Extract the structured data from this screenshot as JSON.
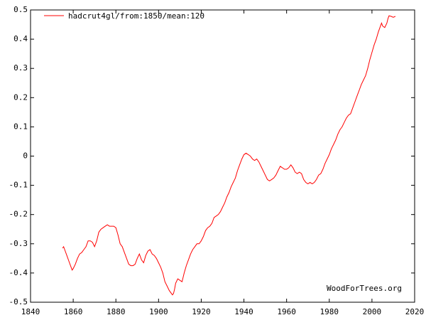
{
  "chart_data": {
    "type": "line",
    "title": "",
    "xlabel": "",
    "ylabel": "",
    "xlim": [
      1840,
      2020
    ],
    "ylim": [
      -0.5,
      0.5
    ],
    "x_ticks": [
      1840,
      1860,
      1880,
      1900,
      1920,
      1940,
      1960,
      1980,
      2000,
      2020
    ],
    "y_ticks": [
      -0.5,
      -0.4,
      -0.3,
      -0.2,
      -0.1,
      0,
      0.1,
      0.2,
      0.3,
      0.4,
      0.5
    ],
    "x_tick_labels": [
      "1840",
      "1860",
      "1880",
      "1900",
      "1920",
      "1940",
      "1960",
      "1980",
      "2000",
      "2020"
    ],
    "y_tick_labels": [
      "-0.5",
      "-0.4",
      "-0.3",
      "-0.2",
      "-0.1",
      "0",
      "0.1",
      "0.2",
      "0.3",
      "0.4",
      "0.5"
    ],
    "grid": false,
    "legend_position": "top-left",
    "series": [
      {
        "name": "hadcrut4gl/from:1850/mean:120",
        "color": "#ff0000",
        "points": [
          [
            1855.0,
            -0.315
          ],
          [
            1855.5,
            -0.31
          ],
          [
            1856.0,
            -0.32
          ],
          [
            1857.0,
            -0.34
          ],
          [
            1858.0,
            -0.36
          ],
          [
            1859.0,
            -0.38
          ],
          [
            1859.5,
            -0.39
          ],
          [
            1860.0,
            -0.385
          ],
          [
            1861.0,
            -0.37
          ],
          [
            1862.0,
            -0.35
          ],
          [
            1863.0,
            -0.335
          ],
          [
            1864.0,
            -0.33
          ],
          [
            1865.0,
            -0.32
          ],
          [
            1866.0,
            -0.31
          ],
          [
            1867.0,
            -0.29
          ],
          [
            1868.0,
            -0.29
          ],
          [
            1869.0,
            -0.295
          ],
          [
            1870.0,
            -0.31
          ],
          [
            1871.0,
            -0.29
          ],
          [
            1872.0,
            -0.26
          ],
          [
            1873.0,
            -0.25
          ],
          [
            1874.0,
            -0.245
          ],
          [
            1875.0,
            -0.24
          ],
          [
            1876.0,
            -0.235
          ],
          [
            1877.0,
            -0.24
          ],
          [
            1878.0,
            -0.24
          ],
          [
            1879.0,
            -0.24
          ],
          [
            1880.0,
            -0.245
          ],
          [
            1881.0,
            -0.27
          ],
          [
            1882.0,
            -0.3
          ],
          [
            1883.0,
            -0.31
          ],
          [
            1884.0,
            -0.33
          ],
          [
            1885.0,
            -0.35
          ],
          [
            1886.0,
            -0.37
          ],
          [
            1887.0,
            -0.375
          ],
          [
            1888.0,
            -0.375
          ],
          [
            1889.0,
            -0.37
          ],
          [
            1890.0,
            -0.35
          ],
          [
            1891.0,
            -0.335
          ],
          [
            1892.0,
            -0.355
          ],
          [
            1893.0,
            -0.365
          ],
          [
            1894.0,
            -0.34
          ],
          [
            1895.0,
            -0.325
          ],
          [
            1896.0,
            -0.32
          ],
          [
            1897.0,
            -0.335
          ],
          [
            1898.0,
            -0.34
          ],
          [
            1899.0,
            -0.35
          ],
          [
            1900.0,
            -0.365
          ],
          [
            1901.0,
            -0.38
          ],
          [
            1902.0,
            -0.4
          ],
          [
            1903.0,
            -0.43
          ],
          [
            1904.0,
            -0.445
          ],
          [
            1905.0,
            -0.46
          ],
          [
            1906.0,
            -0.47
          ],
          [
            1906.5,
            -0.475
          ],
          [
            1907.0,
            -0.47
          ],
          [
            1907.5,
            -0.455
          ],
          [
            1908.0,
            -0.435
          ],
          [
            1909.0,
            -0.42
          ],
          [
            1910.0,
            -0.425
          ],
          [
            1911.0,
            -0.43
          ],
          [
            1912.0,
            -0.4
          ],
          [
            1913.0,
            -0.375
          ],
          [
            1914.0,
            -0.355
          ],
          [
            1915.0,
            -0.335
          ],
          [
            1916.0,
            -0.32
          ],
          [
            1917.0,
            -0.31
          ],
          [
            1918.0,
            -0.3
          ],
          [
            1919.0,
            -0.3
          ],
          [
            1920.0,
            -0.29
          ],
          [
            1921.0,
            -0.275
          ],
          [
            1922.0,
            -0.255
          ],
          [
            1923.0,
            -0.245
          ],
          [
            1924.0,
            -0.24
          ],
          [
            1925.0,
            -0.23
          ],
          [
            1926.0,
            -0.21
          ],
          [
            1927.0,
            -0.205
          ],
          [
            1928.0,
            -0.2
          ],
          [
            1929.0,
            -0.19
          ],
          [
            1930.0,
            -0.175
          ],
          [
            1931.0,
            -0.16
          ],
          [
            1932.0,
            -0.14
          ],
          [
            1933.0,
            -0.125
          ],
          [
            1934.0,
            -0.105
          ],
          [
            1935.0,
            -0.09
          ],
          [
            1936.0,
            -0.075
          ],
          [
            1937.0,
            -0.05
          ],
          [
            1938.0,
            -0.03
          ],
          [
            1939.0,
            -0.01
          ],
          [
            1940.0,
            0.005
          ],
          [
            1941.0,
            0.01
          ],
          [
            1942.0,
            0.005
          ],
          [
            1943.0,
            0.0
          ],
          [
            1944.0,
            -0.01
          ],
          [
            1945.0,
            -0.015
          ],
          [
            1946.0,
            -0.01
          ],
          [
            1947.0,
            -0.02
          ],
          [
            1948.0,
            -0.035
          ],
          [
            1949.0,
            -0.05
          ],
          [
            1950.0,
            -0.065
          ],
          [
            1951.0,
            -0.08
          ],
          [
            1952.0,
            -0.085
          ],
          [
            1953.0,
            -0.08
          ],
          [
            1954.0,
            -0.075
          ],
          [
            1955.0,
            -0.065
          ],
          [
            1956.0,
            -0.05
          ],
          [
            1957.0,
            -0.035
          ],
          [
            1958.0,
            -0.04
          ],
          [
            1959.0,
            -0.045
          ],
          [
            1960.0,
            -0.045
          ],
          [
            1961.0,
            -0.04
          ],
          [
            1962.0,
            -0.03
          ],
          [
            1963.0,
            -0.04
          ],
          [
            1964.0,
            -0.055
          ],
          [
            1965.0,
            -0.06
          ],
          [
            1966.0,
            -0.055
          ],
          [
            1967.0,
            -0.06
          ],
          [
            1968.0,
            -0.08
          ],
          [
            1969.0,
            -0.09
          ],
          [
            1970.0,
            -0.095
          ],
          [
            1971.0,
            -0.09
          ],
          [
            1972.0,
            -0.095
          ],
          [
            1973.0,
            -0.09
          ],
          [
            1974.0,
            -0.08
          ],
          [
            1975.0,
            -0.065
          ],
          [
            1976.0,
            -0.06
          ],
          [
            1977.0,
            -0.045
          ],
          [
            1978.0,
            -0.025
          ],
          [
            1979.0,
            -0.01
          ],
          [
            1980.0,
            0.005
          ],
          [
            1981.0,
            0.025
          ],
          [
            1982.0,
            0.04
          ],
          [
            1983.0,
            0.055
          ],
          [
            1984.0,
            0.075
          ],
          [
            1985.0,
            0.09
          ],
          [
            1986.0,
            0.1
          ],
          [
            1987.0,
            0.115
          ],
          [
            1988.0,
            0.13
          ],
          [
            1989.0,
            0.14
          ],
          [
            1990.0,
            0.145
          ],
          [
            1991.0,
            0.165
          ],
          [
            1992.0,
            0.185
          ],
          [
            1993.0,
            0.205
          ],
          [
            1994.0,
            0.225
          ],
          [
            1995.0,
            0.245
          ],
          [
            1996.0,
            0.26
          ],
          [
            1997.0,
            0.275
          ],
          [
            1998.0,
            0.3
          ],
          [
            1999.0,
            0.33
          ],
          [
            2000.0,
            0.355
          ],
          [
            2001.0,
            0.38
          ],
          [
            2002.0,
            0.4
          ],
          [
            2003.0,
            0.425
          ],
          [
            2004.0,
            0.445
          ],
          [
            2004.5,
            0.455
          ],
          [
            2005.0,
            0.445
          ],
          [
            2006.0,
            0.44
          ],
          [
            2007.0,
            0.455
          ],
          [
            2007.5,
            0.47
          ],
          [
            2008.0,
            0.48
          ],
          [
            2009.0,
            0.478
          ],
          [
            2010.0,
            0.475
          ],
          [
            2011.0,
            0.478
          ]
        ]
      }
    ],
    "annotation": "WoodForTrees.org"
  }
}
